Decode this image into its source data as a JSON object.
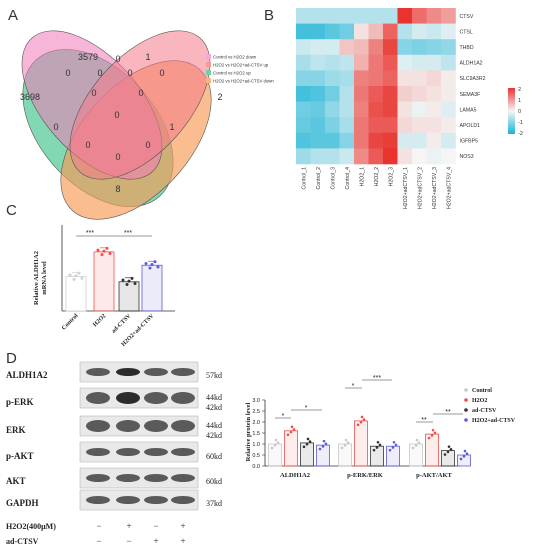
{
  "panels": {
    "a": "A",
    "b": "B",
    "c": "C",
    "d": "D"
  },
  "venn": {
    "legend": [
      "Control vs H2O2 down",
      "H2O2 vs H2O2+ad-CTSV up",
      "Control vs H2O2 up",
      "H2O2 vs H2O2+ad-CTSV down"
    ],
    "legend_colors": [
      "#f4a6d8",
      "#f59a9a",
      "#6fd0a8",
      "#f7b57c"
    ],
    "counts": [
      "3579",
      "1",
      "3698",
      "2",
      "0",
      "0",
      "0",
      "0",
      "0",
      "0",
      "0",
      "1",
      "0",
      "8",
      "0",
      "0",
      "0",
      "0"
    ]
  },
  "heatmap": {
    "genes": [
      "CTSV",
      "CTSL",
      "THBD",
      "ALDH1A2",
      "SLC9A3R2",
      "SEMA3F",
      "LAMA5",
      "APOLD1",
      "IGFBP5",
      "NOS3"
    ],
    "samples": [
      "Control_1",
      "Control_2",
      "Control_3",
      "Control_4",
      "H2O2_1",
      "H2O2_2",
      "H2O2_3",
      "H2O2+adCTSV_1",
      "H2O2+adCTSV_2",
      "H2O2+adCTSV_3",
      "H2O2+adCTSV_4"
    ],
    "scale_ticks": [
      "2",
      "1",
      "0",
      "-1",
      "-2"
    ],
    "values": [
      [
        -0.6,
        -0.6,
        -0.6,
        -0.6,
        -0.6,
        -0.6,
        -0.6,
        2.0,
        1.4,
        1.1,
        0.9
      ],
      [
        -1.6,
        -1.6,
        -1.4,
        -1.2,
        0.2,
        0.6,
        1.5,
        -0.6,
        -0.3,
        -0.4,
        -0.2
      ],
      [
        -0.4,
        -0.3,
        -0.3,
        0.5,
        0.6,
        1.2,
        1.8,
        -1.0,
        -1.1,
        -1.0,
        -0.9
      ],
      [
        -0.7,
        -0.5,
        -0.6,
        -0.5,
        0.7,
        1.3,
        1.6,
        -0.2,
        -0.3,
        -0.3,
        -0.5
      ],
      [
        -1.0,
        -1.0,
        -0.8,
        -0.7,
        1.2,
        1.3,
        1.5,
        0.2,
        0.2,
        0.3,
        0.1
      ],
      [
        -1.6,
        -1.5,
        -1.2,
        -0.6,
        1.3,
        1.6,
        1.8,
        0.4,
        0.3,
        0.2,
        0.1
      ],
      [
        -1.2,
        -1.3,
        -0.9,
        -0.6,
        1.2,
        1.7,
        1.8,
        0.2,
        -0.1,
        0.1,
        -0.2
      ],
      [
        -1.3,
        -1.4,
        -1.1,
        -0.7,
        1.3,
        1.6,
        1.6,
        0.3,
        0.2,
        0.2,
        0.1
      ],
      [
        -1.5,
        -1.4,
        -1.4,
        -1.0,
        1.3,
        1.8,
        1.9,
        -0.3,
        -0.3,
        0.1,
        -0.3
      ],
      [
        -0.8,
        -0.6,
        -0.6,
        -0.4,
        1.1,
        1.6,
        2.0,
        0.2,
        0.0,
        -0.1,
        0.0
      ]
    ]
  },
  "panel_c": {
    "ylabel_1": "Relative ALDH1A2",
    "ylabel_2": "mRNA level",
    "categories": [
      "Control",
      "H2O2",
      "ad-CTSV",
      "H2O2+ad-CTSV"
    ],
    "values": [
      1.0,
      1.72,
      0.85,
      1.33
    ],
    "ylim": [
      0,
      2.5
    ],
    "colors": [
      "#d0d0d0",
      "#ef4e4e",
      "#333333",
      "#5b5bd6"
    ],
    "sig_1": "***",
    "sig_2": "***"
  },
  "panel_d": {
    "blot_labels": [
      "ALDH1A2",
      "p-ERK",
      "ERK",
      "p-AKT",
      "AKT",
      "GAPDH"
    ],
    "kd_labels": [
      "57kd",
      "44kd",
      "42kd",
      "44kd",
      "42kd",
      "60kd",
      "60kd",
      "37kd"
    ],
    "treatment_1": "H2O2(400μM)",
    "treatment_2": "ad-CTSV",
    "t1_signs": [
      "−",
      "+",
      "−",
      "+"
    ],
    "t2_signs": [
      "−",
      "−",
      "+",
      "+"
    ],
    "ylabel": "Relative protein level",
    "y_ticks": [
      "0.0",
      "0.5",
      "1.0",
      "1.5",
      "2.0",
      "2.5",
      "3.0"
    ],
    "groups": [
      "ALDH1A2",
      "p-ERK/ERK",
      "p-AKT/AKT"
    ],
    "legend": [
      "Control",
      "H2O2",
      "ad-CTSV",
      "H2O2+ad-CTSV"
    ],
    "colors": [
      "#c8c8c8",
      "#ef4e4e",
      "#333333",
      "#5b5bd6"
    ],
    "sig": [
      "*",
      "*",
      "*",
      "***",
      "**",
      "**"
    ]
  },
  "chart_data": [
    {
      "type": "bar",
      "title": "",
      "categories": [
        "Control",
        "H2O2",
        "ad-CTSV",
        "H2O2+ad-CTSV"
      ],
      "values": [
        1.0,
        1.72,
        0.85,
        1.33
      ],
      "ylabel": "Relative ALDH1A2 mRNA level",
      "ylim": [
        0,
        2.5
      ]
    },
    {
      "type": "bar",
      "title": "",
      "categories": [
        "ALDH1A2",
        "p-ERK/ERK",
        "p-AKT/AKT"
      ],
      "series": [
        {
          "name": "Control",
          "values": [
            1.0,
            1.0,
            1.0
          ]
        },
        {
          "name": "H2O2",
          "values": [
            1.6,
            2.05,
            1.45
          ]
        },
        {
          "name": "ad-CTSV",
          "values": [
            1.05,
            0.9,
            0.7
          ]
        },
        {
          "name": "H2O2+ad-CTSV",
          "values": [
            0.95,
            0.9,
            0.5
          ]
        }
      ],
      "ylabel": "Relative protein level",
      "ylim": [
        0,
        3.0
      ]
    }
  ]
}
